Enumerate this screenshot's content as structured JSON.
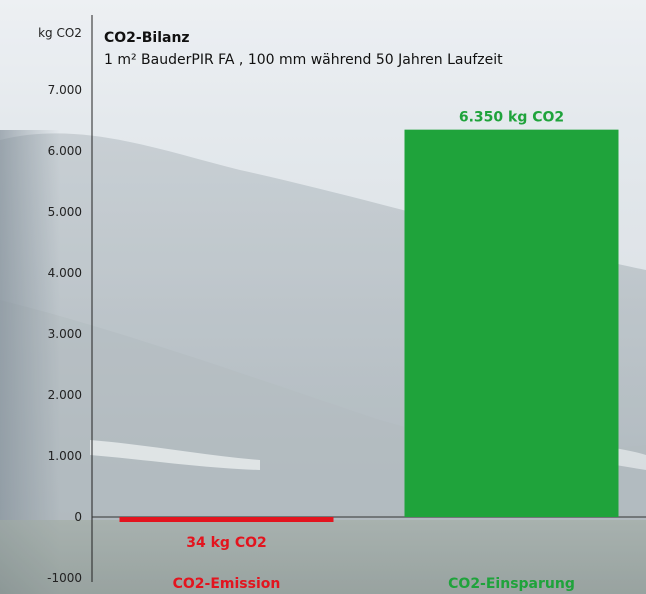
{
  "chart_data": {
    "type": "bar",
    "title": "CO2-Bilanz",
    "subtitle": "1 m² BauderPIR FA , 100 mm während 50 Jahren Laufzeit",
    "ylabel": "kg CO2",
    "ylim": [
      -1000,
      7000
    ],
    "yticks": [
      "7.000",
      "6.000",
      "5.000",
      "4.000",
      "3.000",
      "2.000",
      "1.000",
      "0",
      "-1000"
    ],
    "ytick_values": [
      7000,
      6000,
      5000,
      4000,
      3000,
      2000,
      1000,
      0,
      -1000
    ],
    "categories": [
      "CO2-Emission",
      "CO2-Einsparung"
    ],
    "values": [
      -34,
      6350
    ],
    "value_labels": [
      "34 kg CO2",
      "6.350 kg CO2"
    ],
    "colors": [
      "#e3141e",
      "#1fa33b"
    ],
    "grid": false,
    "legend": "none"
  }
}
